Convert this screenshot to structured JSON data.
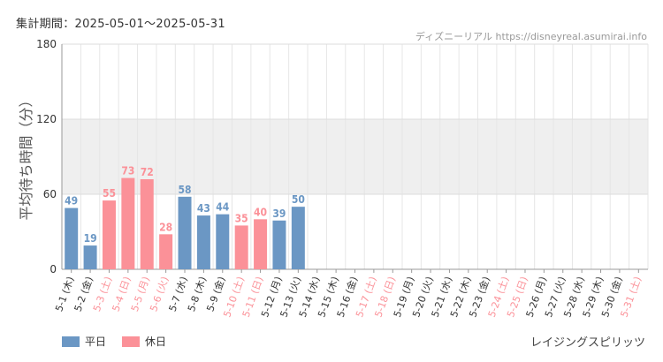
{
  "header": {
    "period": "集計期間：2025-05-01～2025-05-31",
    "credit": "ディズニーリアル https://disneyreal.asumirai.info"
  },
  "footer": {
    "attraction": "レイジングスピリッツ"
  },
  "colors": {
    "weekday": "#6b97c4",
    "holiday": "#fb9198",
    "band": "#efefef",
    "grid": "#dddddd"
  },
  "chart_data": {
    "type": "bar",
    "title": "",
    "xlabel": "",
    "ylabel": "平均待ち時間（分）",
    "ylim": [
      0,
      180
    ],
    "yticks": [
      0,
      60,
      120,
      180
    ],
    "grid": true,
    "legend_position": "bottom-left",
    "series": [
      {
        "name": "平日",
        "color": "#6b97c4"
      },
      {
        "name": "休日",
        "color": "#fb9198"
      }
    ],
    "categories": [
      "5-1 (木)",
      "5-2 (金)",
      "5-3 (土)",
      "5-4 (日)",
      "5-5 (月)",
      "5-6 (火)",
      "5-7 (水)",
      "5-8 (木)",
      "5-9 (金)",
      "5-10 (土)",
      "5-11 (日)",
      "5-12 (月)",
      "5-13 (火)",
      "5-14 (水)",
      "5-15 (木)",
      "5-16 (金)",
      "5-17 (土)",
      "5-18 (日)",
      "5-19 (月)",
      "5-20 (火)",
      "5-21 (水)",
      "5-22 (木)",
      "5-23 (金)",
      "5-24 (土)",
      "5-25 (日)",
      "5-26 (月)",
      "5-27 (火)",
      "5-28 (水)",
      "5-29 (木)",
      "5-30 (金)",
      "5-31 (土)"
    ],
    "holiday": [
      false,
      false,
      true,
      true,
      true,
      true,
      false,
      false,
      false,
      true,
      true,
      false,
      false,
      false,
      false,
      false,
      true,
      true,
      false,
      false,
      false,
      false,
      false,
      true,
      true,
      false,
      false,
      false,
      false,
      false,
      true
    ],
    "values": [
      49,
      19,
      55,
      73,
      72,
      28,
      58,
      43,
      44,
      35,
      40,
      39,
      50,
      null,
      null,
      null,
      null,
      null,
      null,
      null,
      null,
      null,
      null,
      null,
      null,
      null,
      null,
      null,
      null,
      null,
      null
    ]
  }
}
